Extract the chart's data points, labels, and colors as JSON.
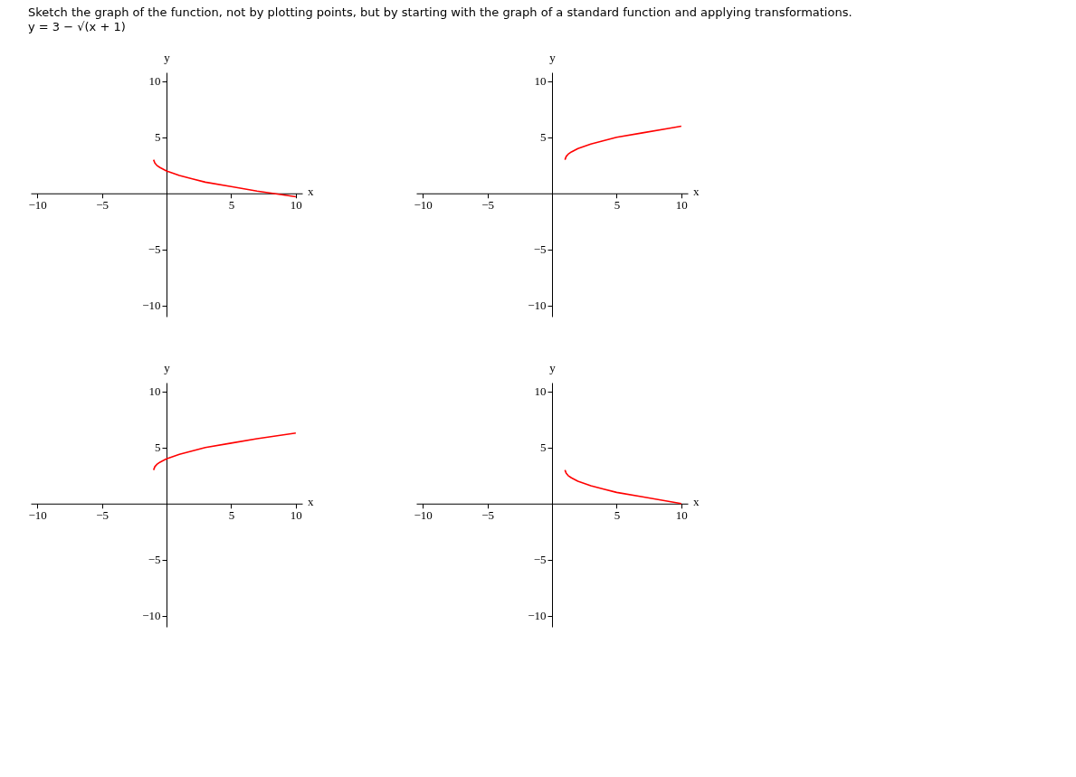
{
  "chart_data": [
    {
      "type": "line",
      "title": "Sketch the graph of the function, not by plotting points, but by starting with the graph of a standard function and applying transformations.",
      "subtitle": "y = 3 − √(x + 1)",
      "xlabel": "x",
      "ylabel": "y",
      "xlim": [
        -10.5,
        10.5
      ],
      "ylim": [
        -11,
        10.8
      ],
      "xticks": [
        -10,
        -5,
        5,
        10
      ],
      "yticks": [
        -10,
        -5,
        5,
        10
      ],
      "grid": false,
      "marker": "none",
      "line_style": "solid",
      "series": [
        {
          "color": "#ff0000",
          "x": [
            -1,
            -0.9,
            -0.75,
            -0.5,
            0,
            1,
            2,
            3,
            5,
            7,
            10
          ],
          "values": [
            3,
            2.7,
            2.5,
            2.3,
            2,
            1.6,
            1.3,
            1,
            0.6,
            0.2,
            -0.3
          ]
        }
      ]
    },
    {
      "type": "line",
      "xlabel": "x",
      "ylabel": "y",
      "xlim": [
        -10.5,
        10.5
      ],
      "ylim": [
        -11,
        10.8
      ],
      "xticks": [
        -10,
        -5,
        5,
        10
      ],
      "yticks": [
        -10,
        -5,
        5,
        10
      ],
      "grid": false,
      "marker": "none",
      "line_style": "solid",
      "series": [
        {
          "color": "#ff0000",
          "x": [
            1,
            1.1,
            1.25,
            1.5,
            2,
            3,
            4,
            5,
            7,
            9,
            10
          ],
          "values": [
            3,
            3.3,
            3.5,
            3.7,
            4,
            4.4,
            4.7,
            5,
            5.4,
            5.8,
            6
          ]
        }
      ]
    },
    {
      "type": "line",
      "xlabel": "x",
      "ylabel": "y",
      "xlim": [
        -10.5,
        10.5
      ],
      "ylim": [
        -11,
        10.8
      ],
      "xticks": [
        -10,
        -5,
        5,
        10
      ],
      "yticks": [
        -10,
        -5,
        5,
        10
      ],
      "grid": false,
      "marker": "none",
      "line_style": "solid",
      "series": [
        {
          "color": "#ff0000",
          "x": [
            -1,
            -0.9,
            -0.75,
            -0.5,
            0,
            1,
            2,
            3,
            5,
            7,
            10
          ],
          "values": [
            3,
            3.3,
            3.5,
            3.7,
            4,
            4.4,
            4.7,
            5,
            5.4,
            5.8,
            6.3
          ]
        }
      ]
    },
    {
      "type": "line",
      "xlabel": "x",
      "ylabel": "y",
      "xlim": [
        -10.5,
        10.5
      ],
      "ylim": [
        -11,
        10.8
      ],
      "xticks": [
        -10,
        -5,
        5,
        10
      ],
      "yticks": [
        -10,
        -5,
        5,
        10
      ],
      "grid": false,
      "marker": "none",
      "line_style": "solid",
      "series": [
        {
          "color": "#ff0000",
          "x": [
            1,
            1.1,
            1.25,
            1.5,
            2,
            3,
            4,
            5,
            7,
            9,
            10
          ],
          "values": [
            3,
            2.7,
            2.5,
            2.3,
            2,
            1.6,
            1.3,
            1,
            0.6,
            0.2,
            0
          ]
        }
      ]
    }
  ]
}
